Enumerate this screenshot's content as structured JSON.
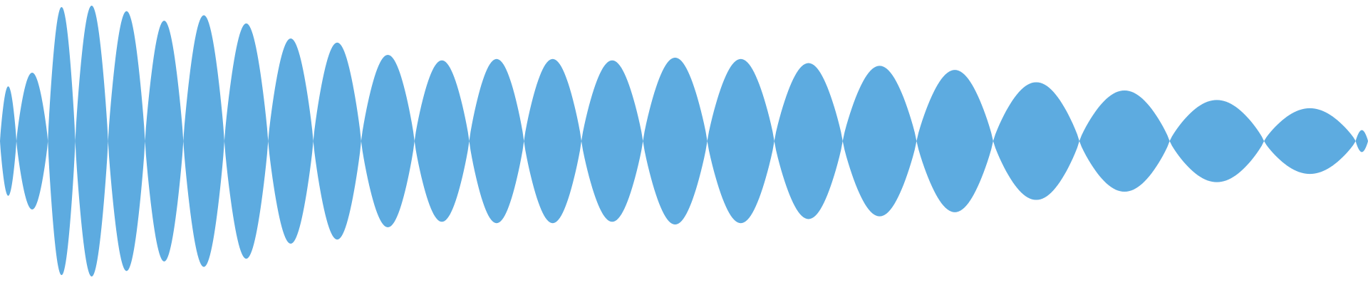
{
  "waveform": {
    "color": "#5dabe0",
    "background": "#ffffff",
    "lobes": [
      {
        "end": 0.012,
        "peak": 0.4
      },
      {
        "end": 0.035,
        "peak": 0.5
      },
      {
        "end": 0.055,
        "peak": 0.98
      },
      {
        "end": 0.079,
        "peak": 0.99
      },
      {
        "end": 0.106,
        "peak": 0.95
      },
      {
        "end": 0.134,
        "peak": 0.88
      },
      {
        "end": 0.164,
        "peak": 0.92
      },
      {
        "end": 0.196,
        "peak": 0.86
      },
      {
        "end": 0.229,
        "peak": 0.75
      },
      {
        "end": 0.264,
        "peak": 0.72
      },
      {
        "end": 0.303,
        "peak": 0.63
      },
      {
        "end": 0.343,
        "peak": 0.59
      },
      {
        "end": 0.383,
        "peak": 0.6
      },
      {
        "end": 0.425,
        "peak": 0.6
      },
      {
        "end": 0.47,
        "peak": 0.59
      },
      {
        "end": 0.517,
        "peak": 0.61
      },
      {
        "end": 0.566,
        "peak": 0.6
      },
      {
        "end": 0.616,
        "peak": 0.57
      },
      {
        "end": 0.67,
        "peak": 0.55
      },
      {
        "end": 0.726,
        "peak": 0.52
      },
      {
        "end": 0.789,
        "peak": 0.43
      },
      {
        "end": 0.855,
        "peak": 0.37
      },
      {
        "end": 0.924,
        "peak": 0.3
      },
      {
        "end": 0.991,
        "peak": 0.24
      },
      {
        "end": 1.0,
        "peak": 0.08
      }
    ]
  }
}
